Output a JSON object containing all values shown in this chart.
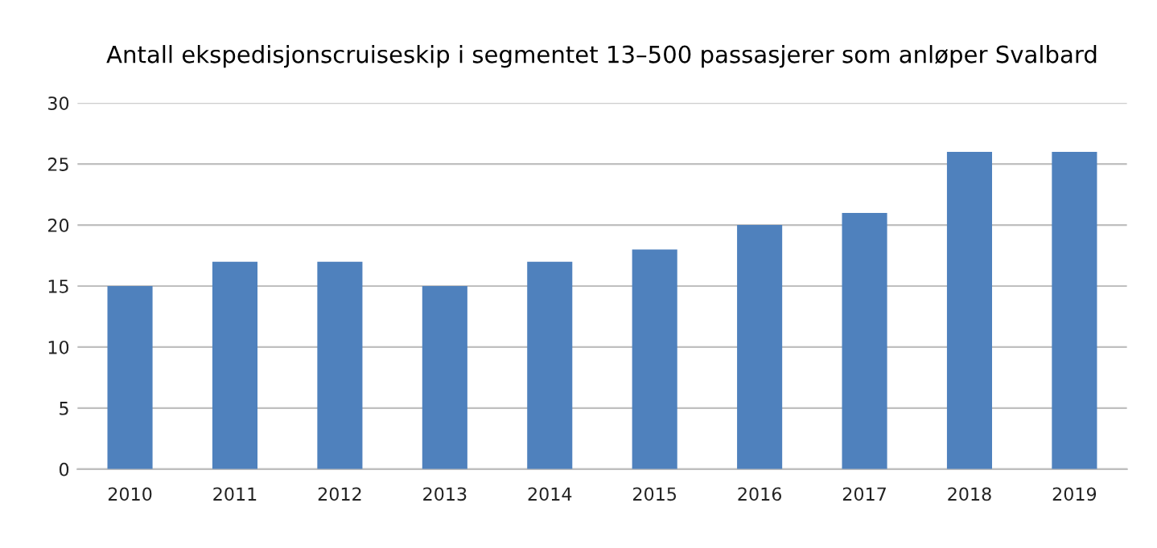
{
  "chart_data": {
    "type": "bar",
    "title": "Antall ekspedisjonscruiseskip i segmentet 13–500 passasjerer som anløper Svalbard",
    "categories": [
      "2010",
      "2011",
      "2012",
      "2013",
      "2014",
      "2015",
      "2016",
      "2017",
      "2018",
      "2019"
    ],
    "values": [
      15,
      17,
      17,
      15,
      17,
      18,
      20,
      21,
      26,
      26
    ],
    "color": "#4f81bd",
    "ylim": [
      0,
      30
    ],
    "yticks": [
      0,
      5,
      10,
      15,
      20,
      25,
      30
    ],
    "grid": "y",
    "legend": false
  }
}
